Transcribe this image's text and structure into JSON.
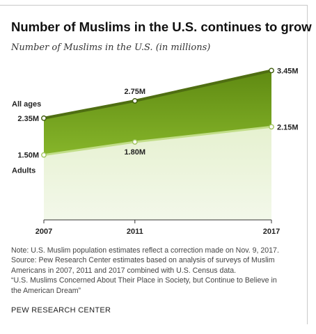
{
  "title": "Number of Muslims in the U.S. continues to grow",
  "chart_data": {
    "type": "area",
    "title": "",
    "subtitle": "Number of Muslims in the U.S. (in millions)",
    "xlabel": "",
    "ylabel": "",
    "x": [
      2007,
      2011,
      2017
    ],
    "x_tick_labels": [
      "2007",
      "2011",
      "2017"
    ],
    "ylim": [
      0,
      3.5
    ],
    "grid": false,
    "legend": "inline-left",
    "series": [
      {
        "name": "All ages",
        "values": [
          2.35,
          2.75,
          3.45
        ],
        "labels": [
          "2.35M",
          "2.75M",
          "3.45M"
        ],
        "color": "#6e9a1c"
      },
      {
        "name": "Adults",
        "values": [
          1.5,
          1.8,
          2.15
        ],
        "labels": [
          "1.50M",
          "1.80M",
          "2.15M"
        ],
        "color": "#c1dd88"
      }
    ]
  },
  "notes": [
    "Note: U.S. Muslim population estimates reflect a correction made on Nov. 9, 2017.",
    "Source: Pew Research Center estimates based on analysis of surveys of Muslim",
    "Americans in 2007, 2011 and 2017 combined with U.S. Census data.",
    "“U.S. Muslims Concerned About Their Place in Society, but Continue to Believe in",
    "the American Dream”"
  ],
  "footer": "PEW RESEARCH CENTER",
  "colors": {
    "all_ages_fill_top": "#5f8a12",
    "all_ages_fill_bottom": "#86b52a",
    "all_ages_line": "#4f6e12",
    "adults_fill_top": "#e6f1d0",
    "adults_fill_bottom": "#f3f8ea",
    "adults_line": "#c1dd88"
  }
}
